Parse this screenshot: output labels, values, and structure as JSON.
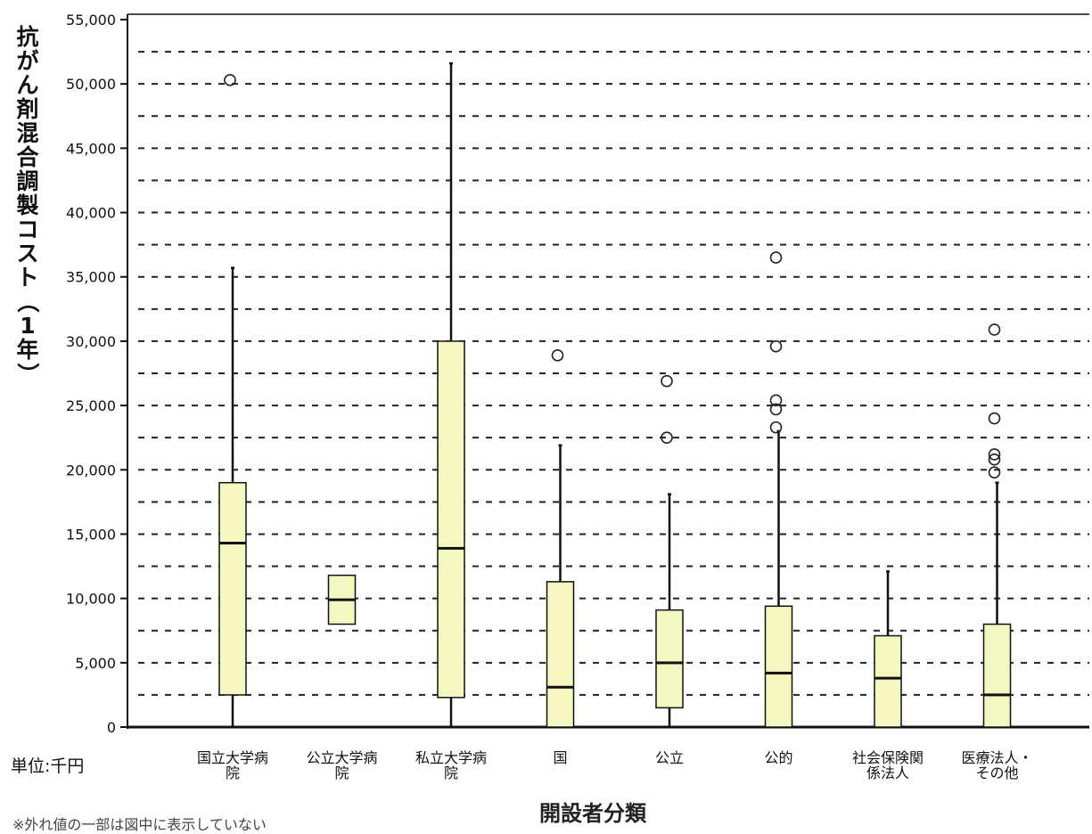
{
  "chart_data": {
    "type": "box",
    "ylabel": "抗がん剤混合調製コスト（1年）",
    "xlabel": "開設者分類",
    "unit_label": "単位:千円",
    "footnote": "※外れ値の一部は図中に表示していない",
    "ylim": [
      0,
      55000
    ],
    "yticks": [
      {
        "value": 0,
        "label": "0"
      },
      {
        "value": 5000,
        "label": "5,000"
      },
      {
        "value": 10000,
        "label": "10,000"
      },
      {
        "value": 15000,
        "label": "15,000"
      },
      {
        "value": 20000,
        "label": "20,000"
      },
      {
        "value": 25000,
        "label": "25,000"
      },
      {
        "value": 30000,
        "label": "30,000"
      },
      {
        "value": 35000,
        "label": "35,000"
      },
      {
        "value": 40000,
        "label": "40,000"
      },
      {
        "value": 45000,
        "label": "45,000"
      },
      {
        "value": 50000,
        "label": "50,000"
      },
      {
        "value": 55000,
        "label": "55,000"
      }
    ],
    "grid": "dotted",
    "grid_step": 2500,
    "box_color": "#f4f8c0",
    "categories": [
      {
        "label": "国立大学病院",
        "lines": [
          "国立大学病",
          "院"
        ],
        "whisker_low": 0,
        "q1": 2500,
        "median": 14300,
        "q3": 19000,
        "whisker_high": 35700,
        "outliers": [
          50300
        ]
      },
      {
        "label": "公立大学病院",
        "lines": [
          "公立大学病",
          "院"
        ],
        "whisker_low": 8000,
        "q1": 8000,
        "median": 9900,
        "q3": 11800,
        "whisker_high": 11800,
        "outliers": []
      },
      {
        "label": "私立大学病院",
        "lines": [
          "私立大学病",
          "院"
        ],
        "whisker_low": 0,
        "q1": 2300,
        "median": 13900,
        "q3": 30000,
        "whisker_high": 51600,
        "outliers": []
      },
      {
        "label": "国",
        "lines": [
          "国"
        ],
        "whisker_low": 0,
        "q1": 0,
        "median": 3100,
        "q3": 11300,
        "whisker_high": 21900,
        "outliers": [
          28900
        ]
      },
      {
        "label": "公立",
        "lines": [
          "公立"
        ],
        "whisker_low": 0,
        "q1": 1500,
        "median": 5000,
        "q3": 9100,
        "whisker_high": 18100,
        "outliers": [
          22500,
          26900
        ]
      },
      {
        "label": "公的",
        "lines": [
          "公的"
        ],
        "whisker_low": 0,
        "q1": 0,
        "median": 4200,
        "q3": 9400,
        "whisker_high": 23000,
        "outliers": [
          23300,
          24700,
          25400,
          29600,
          36500
        ]
      },
      {
        "label": "社会保険関係法人",
        "lines": [
          "社会保険関",
          "係法人"
        ],
        "whisker_low": 0,
        "q1": 0,
        "median": 3800,
        "q3": 7100,
        "whisker_high": 12100,
        "outliers": []
      },
      {
        "label": "医療法人・その他",
        "lines": [
          "医療法人・",
          "その他"
        ],
        "whisker_low": 0,
        "q1": 0,
        "median": 2500,
        "q3": 8000,
        "whisker_high": 19000,
        "outliers": [
          19800,
          20800,
          21200,
          24000,
          30900
        ]
      }
    ]
  }
}
